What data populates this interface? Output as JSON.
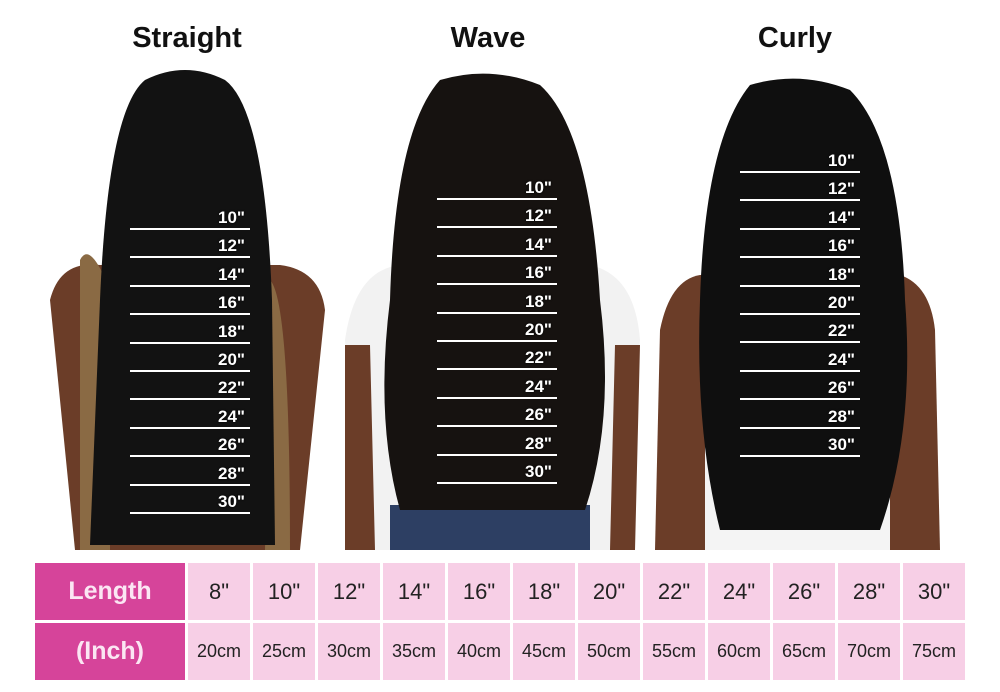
{
  "titles": [
    "Straight",
    "Wave",
    "Curly"
  ],
  "marks": [
    "10\"",
    "12\"",
    "14\"",
    "16\"",
    "18\"",
    "20\"",
    "22\"",
    "24\"",
    "26\"",
    "28\"",
    "30\""
  ],
  "table": {
    "row1_header": "Length",
    "row2_header": "(Inch)",
    "inches": [
      "8\"",
      "10\"",
      "12\"",
      "14\"",
      "16\"",
      "18\"",
      "20\"",
      "22\"",
      "24\"",
      "26\"",
      "28\"",
      "30\""
    ],
    "cm": [
      "20cm",
      "25cm",
      "30cm",
      "35cm",
      "40cm",
      "45cm",
      "50cm",
      "55cm",
      "60cm",
      "65cm",
      "70cm",
      "75cm"
    ]
  },
  "colors": {
    "header_pink": "#d6449a",
    "cell_pink": "#f7cfe6",
    "hair": "#121212",
    "skin": "#6b3d28"
  }
}
